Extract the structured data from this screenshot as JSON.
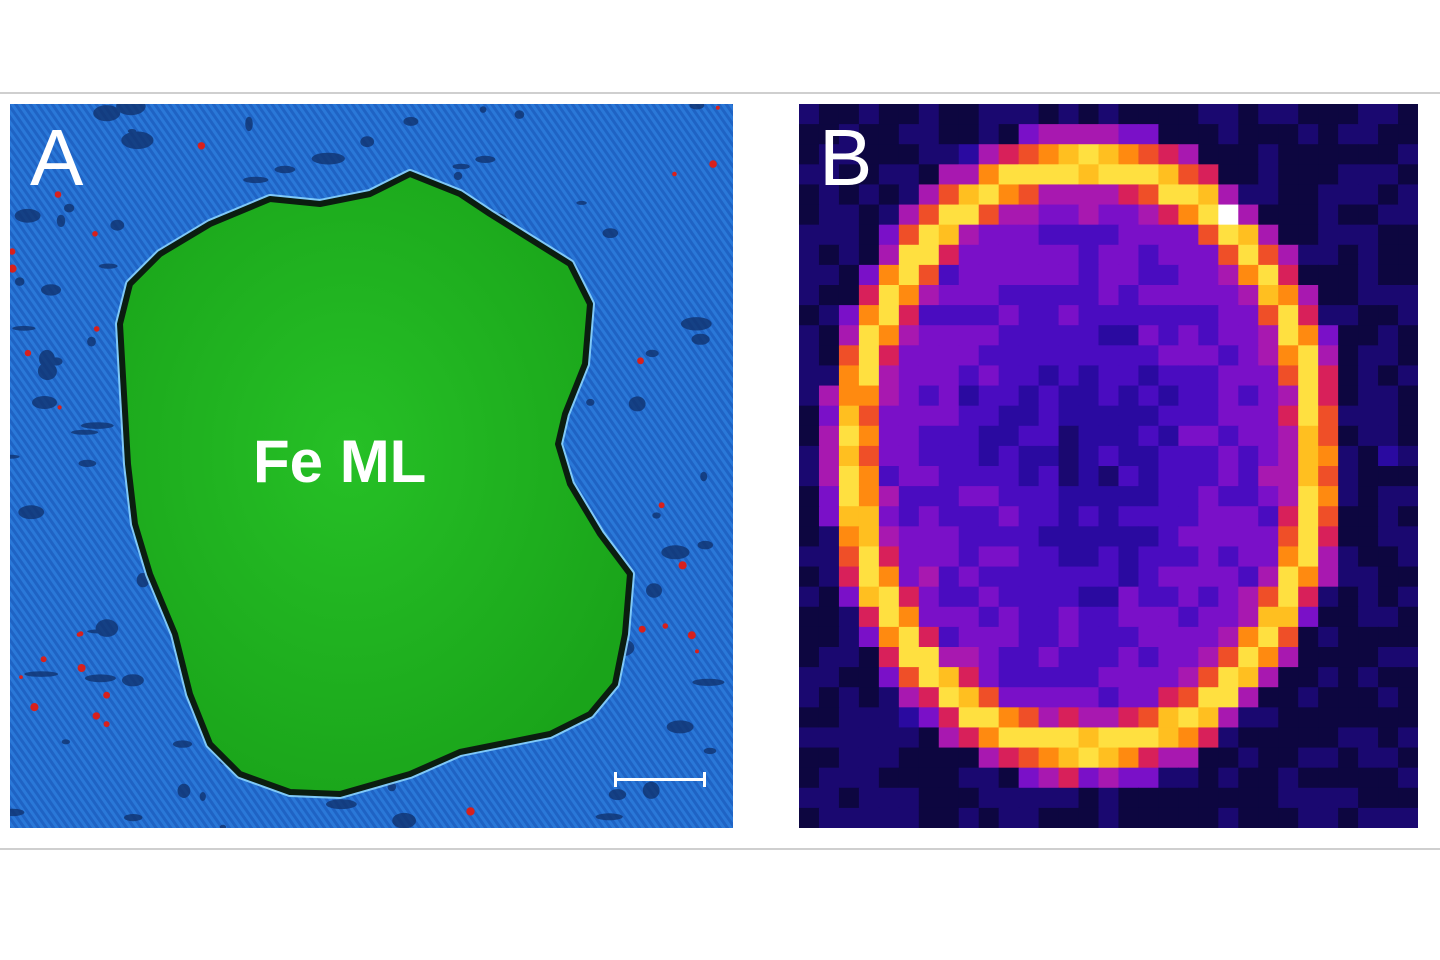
{
  "panel_a": {
    "label": "A",
    "island_label": "Fe ML",
    "colors": {
      "substrate": "#1f63c4",
      "island": "#1fb21f",
      "edge": "#0b1d10",
      "rim": "#8fd8ff",
      "dots": "#d8201c"
    }
  },
  "panel_b": {
    "label": "B",
    "colors": {
      "background": "#0d0640",
      "interior": "#2a0aa0",
      "ring_low": "#7a10c8",
      "ring_mid": "#d8205a",
      "ring_high": "#ff8a10",
      "ring_peak": "#ffe040"
    }
  }
}
